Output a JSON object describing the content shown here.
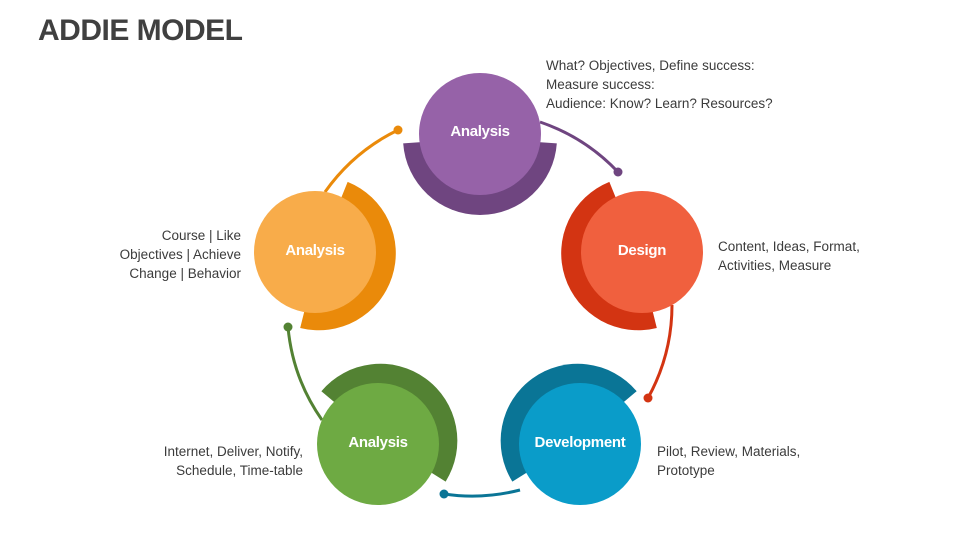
{
  "title": "ADDIE MODEL",
  "nodes": [
    {
      "label": "Analysis",
      "color": "#9662A8",
      "back_color": "#6F4580",
      "description": [
        "What? Objectives, Define success:",
        "Measure success:",
        "Audience: Know? Learn? Resources?"
      ]
    },
    {
      "label": "Design",
      "color": "#F0603E",
      "back_color": "#D33412",
      "description": [
        "Content, Ideas, Format,",
        "Activities, Measure"
      ]
    },
    {
      "label": "Development",
      "color": "#0A9CC9",
      "back_color": "#0A7596",
      "description": [
        "Pilot, Review, Materials,",
        "Prototype"
      ]
    },
    {
      "label": "Analysis",
      "color": "#6EAA43",
      "back_color": "#538233",
      "description": [
        "Internet, Deliver, Notify,",
        "Schedule, Time-table"
      ]
    },
    {
      "label": "Analysis",
      "color": "#F8AC4A",
      "back_color": "#EA8A0A",
      "description": [
        "Course | Like",
        "Objectives | Achieve",
        "Change | Behavior"
      ]
    }
  ]
}
